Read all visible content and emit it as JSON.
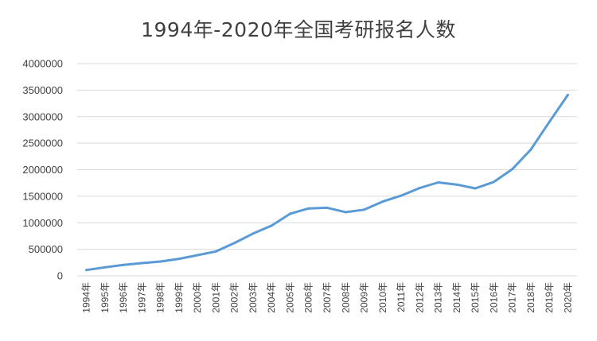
{
  "chart_data": {
    "type": "line",
    "title": "1994年-2020年全国考研报名人数",
    "xlabel": "",
    "ylabel": "",
    "categories": [
      "1994年",
      "1995年",
      "1996年",
      "1997年",
      "1998年",
      "1999年",
      "2000年",
      "2001年",
      "2002年",
      "2003年",
      "2004年",
      "2005年",
      "2006年",
      "2007年",
      "2008年",
      "2009年",
      "2010年",
      "2011年",
      "2012年",
      "2013年",
      "2014年",
      "2015年",
      "2016年",
      "2017年",
      "2018年",
      "2019年",
      "2020年"
    ],
    "series": [
      {
        "values": [
          110000,
          160000,
          205000,
          240000,
          270000,
          320000,
          390000,
          460000,
          620000,
          797000,
          945000,
          1170000,
          1270000,
          1282000,
          1200000,
          1246000,
          1400000,
          1512000,
          1656000,
          1760000,
          1720000,
          1648000,
          1770000,
          2010000,
          2380000,
          2900000,
          3410000
        ],
        "color": "#5b9bd5"
      }
    ],
    "ylim": [
      0,
      4000000
    ],
    "yticks": [
      "0",
      "500000",
      "1000000",
      "1500000",
      "2000000",
      "2500000",
      "3000000",
      "3500000",
      "4000000"
    ],
    "grid": true,
    "legend": "none"
  },
  "colors": {
    "gridline": "#d9d9d9",
    "text": "#404040",
    "line": "#5b9bd5"
  }
}
